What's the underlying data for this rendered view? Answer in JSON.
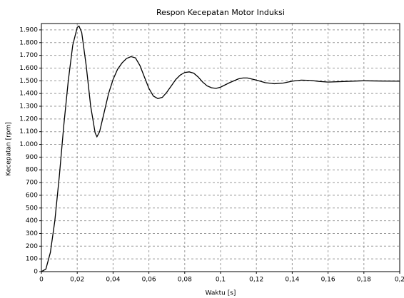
{
  "chart_data": {
    "type": "line",
    "title": "Respon Kecepatan Motor Induksi",
    "xlabel": "Waktu [s]",
    "ylabel": "Kecepatan [rpm]",
    "x": [
      0,
      0.0025,
      0.005,
      0.0075,
      0.01,
      0.0125,
      0.015,
      0.0175,
      0.02,
      0.021,
      0.0225,
      0.025,
      0.0275,
      0.03,
      0.031,
      0.0325,
      0.035,
      0.0375,
      0.04,
      0.0425,
      0.045,
      0.0475,
      0.05,
      0.0525,
      0.055,
      0.0575,
      0.06,
      0.0625,
      0.065,
      0.0675,
      0.07,
      0.0725,
      0.075,
      0.0775,
      0.08,
      0.0825,
      0.085,
      0.0875,
      0.09,
      0.0925,
      0.095,
      0.0975,
      0.1,
      0.105,
      0.11,
      0.1125,
      0.115,
      0.12,
      0.125,
      0.13,
      0.135,
      0.14,
      0.145,
      0.15,
      0.155,
      0.16,
      0.17,
      0.18,
      0.19,
      0.2
    ],
    "series": [
      {
        "name": "Kecepatan",
        "color": "#000000",
        "values": [
          0,
          20,
          150,
          400,
          750,
          1150,
          1500,
          1780,
          1920,
          1930,
          1880,
          1620,
          1300,
          1090,
          1060,
          1100,
          1250,
          1400,
          1510,
          1590,
          1640,
          1675,
          1690,
          1680,
          1620,
          1530,
          1440,
          1380,
          1360,
          1370,
          1410,
          1460,
          1510,
          1545,
          1565,
          1570,
          1560,
          1530,
          1490,
          1460,
          1445,
          1440,
          1450,
          1485,
          1515,
          1522,
          1522,
          1505,
          1485,
          1477,
          1482,
          1497,
          1505,
          1503,
          1495,
          1490,
          1495,
          1500,
          1498,
          1497
        ]
      }
    ],
    "xlim": [
      0,
      0.2
    ],
    "ylim": [
      0,
      1950
    ],
    "xticks": [
      0,
      {
        "value": 0.02,
        "label": "0,02"
      },
      {
        "value": 0.04,
        "label": "0,04"
      },
      {
        "value": 0.06,
        "label": "0,06"
      },
      {
        "value": 0.08,
        "label": "0,08"
      },
      {
        "value": 0.1,
        "label": "0,1"
      },
      {
        "value": 0.12,
        "label": "0,12"
      },
      {
        "value": 0.14,
        "label": "0,14"
      },
      {
        "value": 0.16,
        "label": "0,16"
      },
      {
        "value": 0.18,
        "label": "0,18"
      },
      {
        "value": 0.2,
        "label": "0,2"
      }
    ],
    "yticks": [
      0,
      100,
      200,
      300,
      400,
      500,
      600,
      700,
      800,
      900,
      {
        "value": 1000,
        "label": "1.000"
      },
      {
        "value": 1100,
        "label": "1.100"
      },
      {
        "value": 1200,
        "label": "1.200"
      },
      {
        "value": 1300,
        "label": "1.300"
      },
      {
        "value": 1400,
        "label": "1.400"
      },
      {
        "value": 1500,
        "label": "1.500"
      },
      {
        "value": 1600,
        "label": "1.600"
      },
      {
        "value": 1700,
        "label": "1.700"
      },
      {
        "value": 1800,
        "label": "1.800"
      },
      {
        "value": 1900,
        "label": "1.900"
      }
    ],
    "grid": true
  }
}
